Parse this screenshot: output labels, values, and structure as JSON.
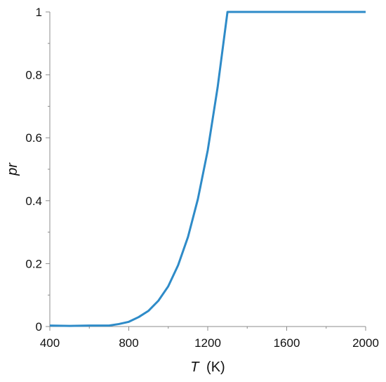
{
  "chart_data": {
    "type": "line",
    "title": "",
    "xlabel": {
      "symbol": "T",
      "unit": "(K)"
    },
    "ylabel": "pr",
    "xlim": [
      400,
      2000
    ],
    "ylim": [
      0,
      1
    ],
    "x_ticks": [
      400,
      800,
      1200,
      1600,
      2000
    ],
    "x_tick_labels": [
      "400",
      "800",
      "1200",
      "1600",
      "2000"
    ],
    "y_ticks": [
      0,
      0.2,
      0.4,
      0.6,
      0.8,
      1
    ],
    "y_tick_labels": [
      "0",
      "0.2",
      "0.4",
      "0.6",
      "0.8",
      "1"
    ],
    "grid": false,
    "legend": "none",
    "line_color": "#2E8BC8",
    "series": [
      {
        "x": [
          400,
          500,
          600,
          700,
          750,
          800,
          850,
          900,
          950,
          1000,
          1050,
          1100,
          1150,
          1200,
          1250,
          1300,
          1350,
          1400,
          1500,
          1600,
          1700,
          1800,
          1900,
          2000
        ],
        "values": [
          0.003,
          0.002,
          0.003,
          0.003,
          0.008,
          0.015,
          0.03,
          0.05,
          0.082,
          0.128,
          0.195,
          0.285,
          0.405,
          0.56,
          0.76,
          1.0,
          1.0,
          1.0,
          1.0,
          1.0,
          1.0,
          1.0,
          1.0,
          1.0
        ]
      }
    ]
  }
}
